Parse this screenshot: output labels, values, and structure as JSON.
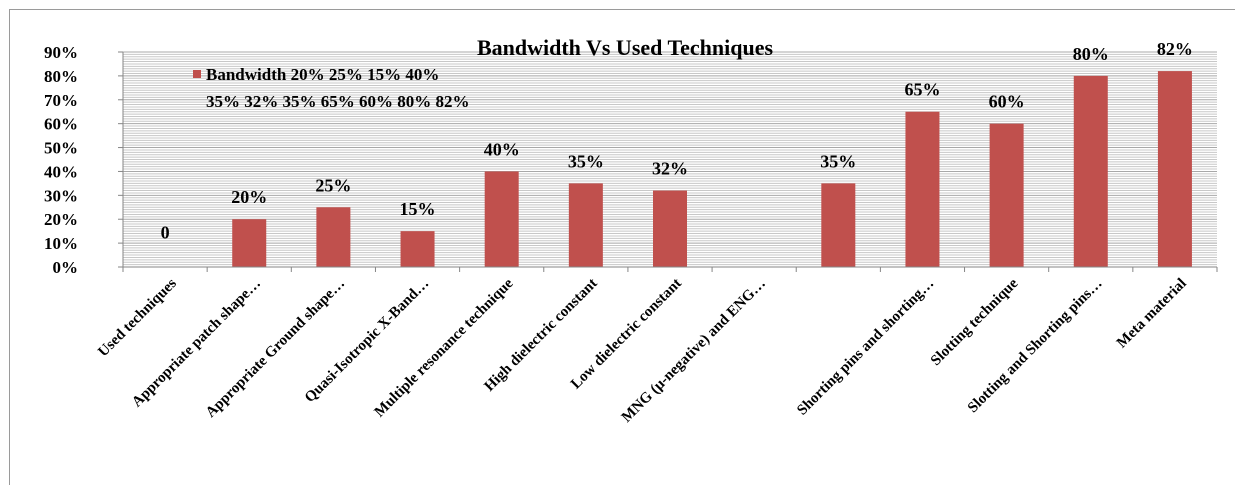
{
  "chart_data": {
    "type": "bar",
    "title": "Bandwidth Vs Used Techniques",
    "categories": [
      "Used techniques",
      "Appropriate patch shape…",
      "Appropriate Ground  shape…",
      "Quasi-Isotropic X-Band…",
      "Multiple resonance technique",
      "High dielectric constant",
      "Low dielectric constant",
      "MNG (μ-negative) and ENG…",
      "",
      "Shorting pins  and shorting…",
      "Slotting technique",
      "Slotting and Shorting pins…",
      "Meta material"
    ],
    "series": [
      {
        "name": "Bandwidth",
        "values": [
          0,
          20,
          25,
          15,
          40,
          35,
          32,
          null,
          35,
          65,
          60,
          80,
          82
        ],
        "data_labels": [
          "0",
          "20%",
          "25%",
          "15%",
          "40%",
          "35%",
          "32%",
          "",
          "35%",
          "65%",
          "60%",
          "80%",
          "82%"
        ]
      }
    ],
    "legend": {
      "line1": "Bandwidth 20% 25% 15% 40%",
      "line2": "35% 32% 35% 65% 60% 80% 82%",
      "placement": "top-left"
    },
    "y_ticks": [
      "0%",
      "10%",
      "20%",
      "30%",
      "40%",
      "50%",
      "60%",
      "70%",
      "80%",
      "90%"
    ],
    "ylim": [
      0,
      90
    ],
    "xlabel": "",
    "ylabel": "",
    "grid": true,
    "colors": {
      "bar": "#c0504d",
      "grid": "#c8c8c8",
      "axis": "#868686"
    }
  }
}
